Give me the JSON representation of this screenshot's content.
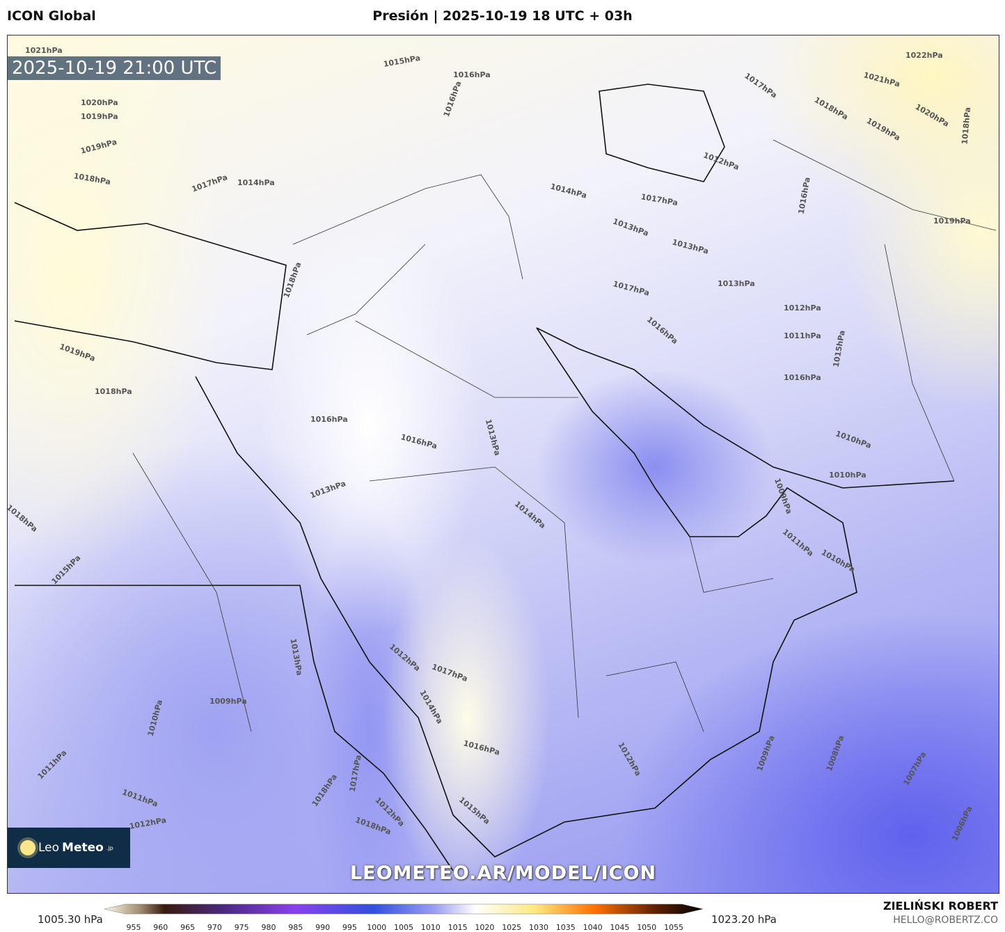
{
  "header": {
    "model": "ICON Global",
    "title": "Presión | 2025-10-19 18 UTC + 03h"
  },
  "map": {
    "valid_time": "2025-10-19 21:00 UTC",
    "watermark_url": "LEOMETEO.AR/MODEL/ICON",
    "logo": {
      "part1": "Leo",
      "part2": "Meteo",
      "part3": ".jp"
    },
    "isobar_labels": [
      "1021hPa",
      "1015hPa",
      "1016hPa",
      "1020hPa",
      "1019hPa",
      "1019hPa",
      "1018hPa",
      "1017hPa",
      "1014hPa",
      "1016hPa",
      "1018hPa",
      "1019hPa",
      "1018hPa",
      "1016hPa",
      "1016hPa",
      "1013hPa",
      "1014hPa",
      "1013hPa",
      "1018hPa",
      "1015hPa",
      "1013hPa",
      "1012hPa",
      "1017hPa",
      "1009hPa",
      "1010hPa",
      "1011hPa",
      "1011hPa",
      "1012hPa",
      "1014hPa",
      "1016hPa",
      "1018hPa",
      "1012hPa",
      "1017hPa",
      "1018hPa",
      "1015hPa",
      "1012hPa",
      "1009hPa",
      "1008hPa",
      "1007hPa",
      "1006hPa",
      "1017hPa",
      "1012hPa",
      "1014hPa",
      "1013hPa",
      "1017hPa",
      "1016hPa",
      "1013hPa",
      "1013hPa",
      "1012hPa",
      "1011hPa",
      "1016hPa",
      "1010hPa",
      "1010hPa",
      "1009hPa",
      "1011hPa",
      "1010hPa",
      "1015hPa",
      "1016hPa",
      "1017hPa",
      "1018hPa",
      "1019hPa",
      "1020hPa",
      "1021hPa",
      "1022hPa",
      "1018hPa",
      "1019hPa"
    ],
    "colors": {
      "high": "#fff6c0",
      "neutral": "#ffffff",
      "low": "#6062ee"
    }
  },
  "colorbar": {
    "min_label": "1005.30 hPa",
    "max_label": "1023.20 hPa",
    "ticks": [
      "955",
      "960",
      "965",
      "970",
      "975",
      "980",
      "985",
      "990",
      "995",
      "1000",
      "1005",
      "1010",
      "1015",
      "1020",
      "1025",
      "1030",
      "1035",
      "1040",
      "1045",
      "1050",
      "1055"
    ],
    "unit": "hPa"
  },
  "credits": {
    "author": "ZIELIŃSKI ROBERT",
    "email": "HELLO@ROBERTZ.CO"
  }
}
